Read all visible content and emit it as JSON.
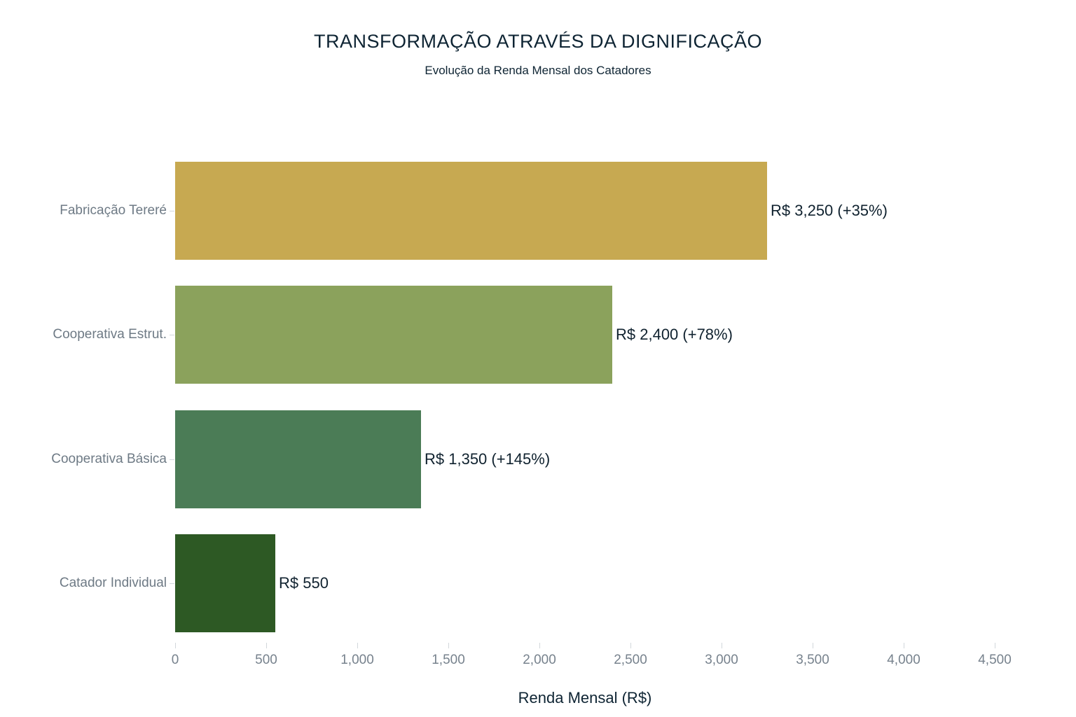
{
  "title": "TRANSFORMAÇÃO ATRAVÉS DA DIGNIFICAÇÃO",
  "subtitle": "Evolução da Renda Mensal dos Catadores",
  "xlabel": "Renda Mensal (R$)",
  "chart_data": {
    "type": "bar",
    "orientation": "horizontal",
    "title": "TRANSFORMAÇÃO ATRAVÉS DA DIGNIFICAÇÃO",
    "subtitle": "Evolução da Renda Mensal dos Catadores",
    "xlabel": "Renda Mensal (R$)",
    "ylabel": "",
    "categories": [
      "Fabricação Tereré",
      "Cooperativa Estrut.",
      "Cooperativa Básica",
      "Catador Individual"
    ],
    "values": [
      3250,
      2400,
      1350,
      550
    ],
    "bar_labels": [
      "R$ 3,250 (+35%)",
      "R$ 2,400 (+78%)",
      "R$ 1,350 (+145%)",
      "R$ 550"
    ],
    "bar_colors": [
      "#c7a951",
      "#8ba25c",
      "#4b7c56",
      "#2d5924"
    ],
    "xlim": [
      0,
      4500
    ],
    "xticks": [
      0,
      500,
      1000,
      1500,
      2000,
      2500,
      3000,
      3500,
      4000,
      4500
    ],
    "xtick_labels": [
      "0",
      "500",
      "1,000",
      "1,500",
      "2,000",
      "2,500",
      "3,000",
      "3,500",
      "4,000",
      "4,500"
    ],
    "grid": false,
    "legend": "none",
    "background": "#ffffff"
  },
  "colors": {
    "title_text": "#0e2433",
    "value_text": "#10222f",
    "category_text": "#6e7a85",
    "tick_text": "#77828d",
    "tick_mark": "#d2d7db"
  }
}
